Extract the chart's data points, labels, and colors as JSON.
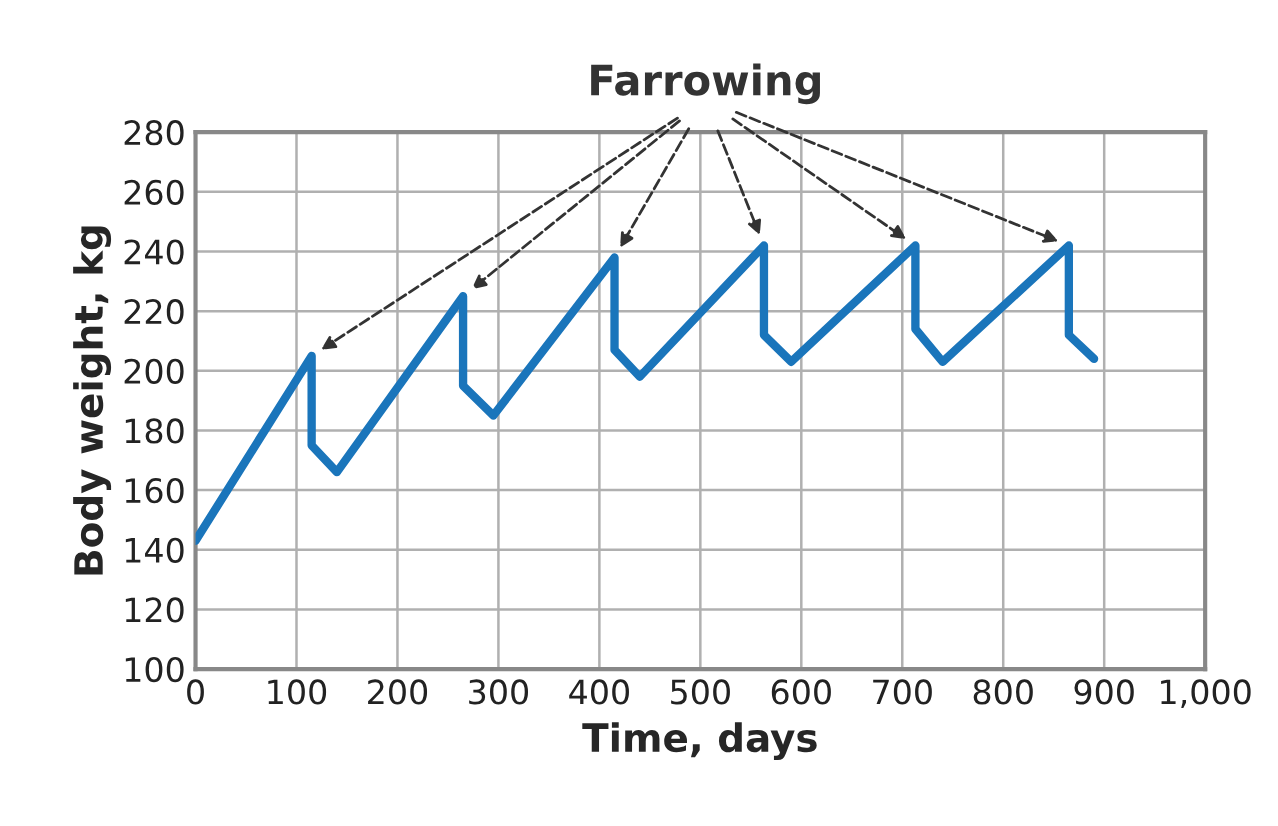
{
  "chart_data": {
    "type": "line",
    "xlabel": "Time, days",
    "ylabel": "Body weight, kg",
    "annotations": [
      "Farrowing"
    ],
    "series": [
      {
        "color": "#1a75bb",
        "x": [
          0,
          115,
          115,
          140,
          265,
          265,
          295,
          415,
          415,
          440,
          563,
          563,
          590,
          713,
          713,
          740,
          865,
          865,
          890
        ],
        "values": [
          143,
          205,
          175,
          166,
          225,
          195,
          185,
          238,
          207,
          198,
          242,
          212,
          203,
          242,
          214,
          203,
          242,
          212,
          204
        ]
      }
    ],
    "xlim": [
      0,
      1000
    ],
    "xticks": [
      0,
      100,
      200,
      300,
      400,
      500,
      600,
      700,
      800,
      900,
      {
        "value": 1000,
        "label": "1,000"
      }
    ],
    "ylim": [
      100,
      280
    ],
    "yticks": [
      100,
      120,
      140,
      160,
      180,
      200,
      220,
      240,
      260,
      280
    ],
    "grid": true,
    "marker": "none",
    "line_style": "solid"
  }
}
